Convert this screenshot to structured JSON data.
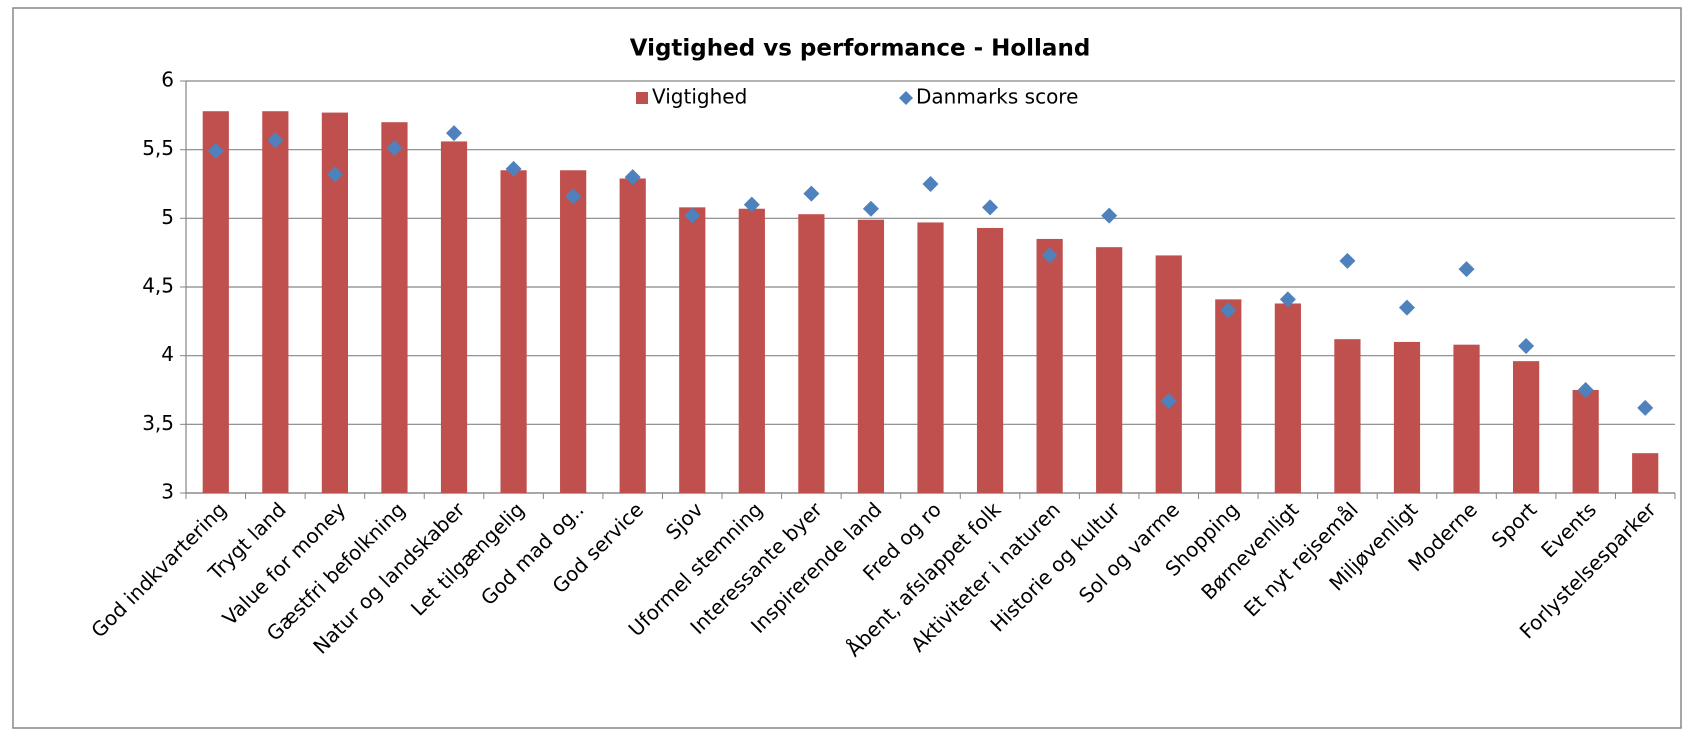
{
  "chart_data": {
    "type": "bar",
    "title": "Vigtighed vs performance  - Holland",
    "categories": [
      "God indkvartering",
      "Trygt land",
      "Value for money",
      "Gæstfri befolkning",
      "Natur og landskaber",
      "Let tilgængelig",
      "God mad og..",
      "God service",
      "Sjov",
      "Uformel stemning",
      "Interessante byer",
      "Inspirerende land",
      "Fred og ro",
      "Åbent, afslappet folk",
      "Aktiviteter i naturen",
      "Historie og kultur",
      "Sol og varme",
      "Shopping",
      "Børnevenligt",
      "Et nyt rejsemål",
      "Miljøvenligt",
      "Moderne",
      "Sport",
      "Events",
      "Forlystelsesparker"
    ],
    "series": [
      {
        "name": "Vigtighed",
        "type": "bar",
        "color": "#c0504d",
        "values": [
          5.78,
          5.78,
          5.77,
          5.7,
          5.56,
          5.35,
          5.35,
          5.29,
          5.08,
          5.07,
          5.03,
          4.99,
          4.97,
          4.93,
          4.85,
          4.79,
          4.73,
          4.41,
          4.38,
          4.12,
          4.1,
          4.08,
          3.96,
          3.75,
          3.29
        ]
      },
      {
        "name": "Danmarks score",
        "type": "scatter",
        "color": "#4f81bd",
        "values": [
          5.49,
          5.57,
          5.32,
          5.51,
          5.62,
          5.36,
          5.16,
          5.3,
          5.02,
          5.1,
          5.18,
          5.07,
          5.25,
          5.08,
          4.73,
          5.02,
          3.67,
          4.33,
          4.41,
          4.69,
          4.35,
          4.63,
          4.07,
          3.75,
          3.62
        ]
      }
    ],
    "ylim": [
      3,
      6
    ],
    "yticks": [
      3,
      {
        "value": 3.5,
        "label": "3,5"
      },
      4,
      {
        "value": 4.5,
        "label": "4,5"
      },
      5,
      {
        "value": 5.5,
        "label": "5,5"
      },
      6
    ],
    "grid": true,
    "legend": "top"
  }
}
